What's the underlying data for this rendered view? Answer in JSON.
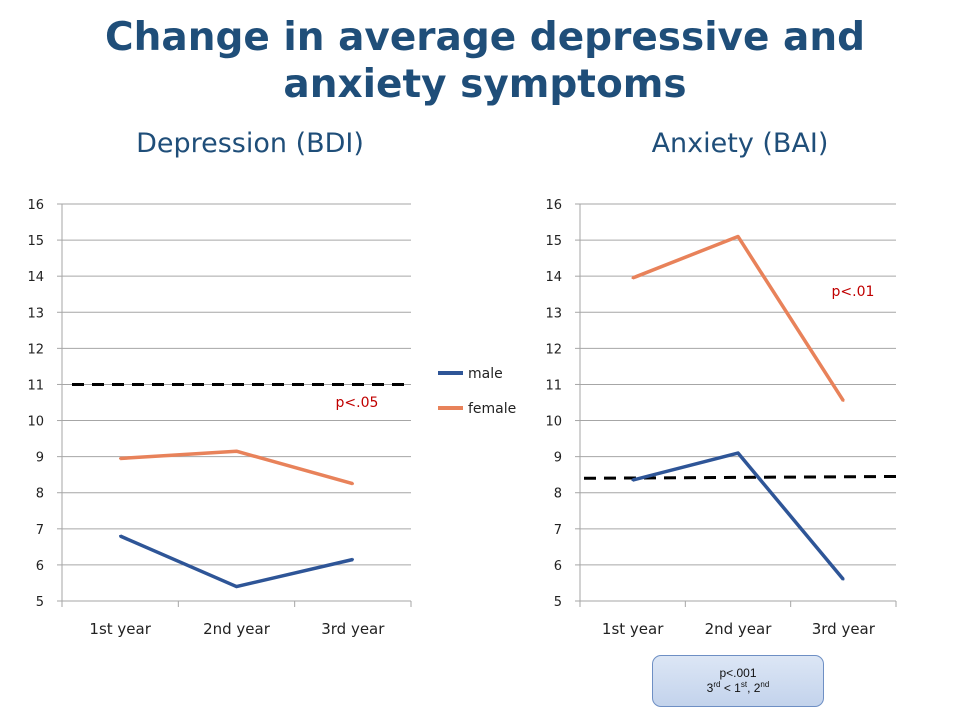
{
  "slide": {
    "title_line1": "Change in average depressive and",
    "title_line2": "anxiety symptoms"
  },
  "colors": {
    "male": "#2E5597",
    "female": "#E8825A",
    "grid": "#A6A6A6",
    "annotation": "#C00000",
    "reference": "#000000"
  },
  "legend": [
    {
      "name": "male",
      "color": "#2E5597"
    },
    {
      "name": "female",
      "color": "#E8825A"
    }
  ],
  "stat_box": {
    "line1": "p<.001",
    "line2_parts": [
      "3",
      "rd",
      " < 1",
      "st",
      ", 2",
      "nd"
    ]
  },
  "chart_data": [
    {
      "type": "line",
      "title": "Depression (BDI)",
      "categories": [
        "1st year",
        "2nd year",
        "3rd year"
      ],
      "ylim": [
        5,
        16
      ],
      "yticks": [
        5,
        6,
        7,
        8,
        9,
        10,
        11,
        12,
        13,
        14,
        15,
        16
      ],
      "grid": true,
      "legend_position": "right",
      "series": [
        {
          "name": "male",
          "values": [
            6.8,
            5.4,
            6.15
          ]
        },
        {
          "name": "female",
          "values": [
            8.95,
            9.15,
            8.25
          ]
        }
      ],
      "reference_line": {
        "y": 11,
        "style": "dashed"
      },
      "annotation": {
        "text": "p<.05"
      }
    },
    {
      "type": "line",
      "title": "Anxiety (BAI)",
      "categories": [
        "1st year",
        "2nd year",
        "3rd year"
      ],
      "ylim": [
        5,
        16
      ],
      "yticks": [
        5,
        6,
        7,
        8,
        9,
        10,
        11,
        12,
        13,
        14,
        15,
        16
      ],
      "grid": true,
      "series": [
        {
          "name": "male",
          "values": [
            8.35,
            9.1,
            5.6
          ]
        },
        {
          "name": "female",
          "values": [
            13.95,
            15.1,
            10.55
          ]
        }
      ],
      "reference_line": {
        "y_start": 8.4,
        "y_end": 8.45,
        "style": "dashed"
      },
      "annotation": {
        "text": "p<.01"
      }
    }
  ]
}
